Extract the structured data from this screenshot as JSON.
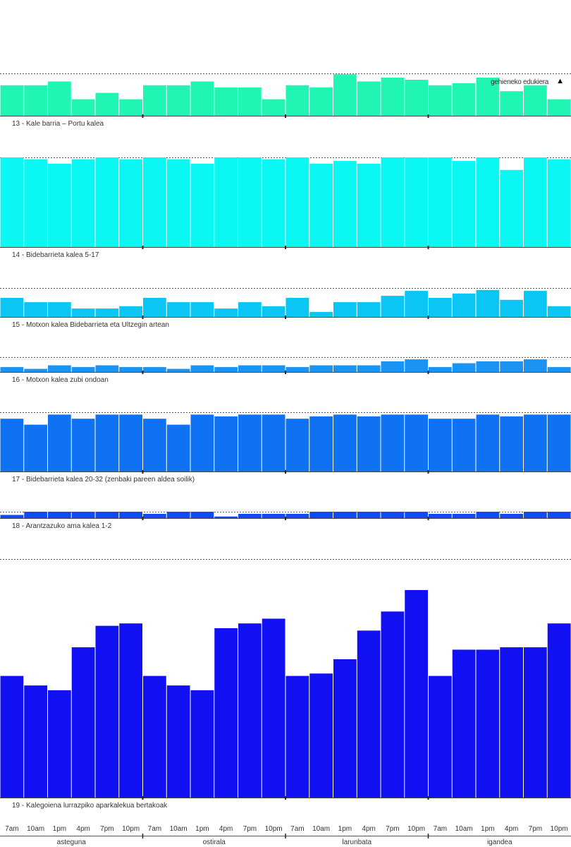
{
  "legend": {
    "label": "gehieneko edukiera",
    "marker": "▲"
  },
  "chart_data": {
    "type": "bar",
    "x_ticks": [
      "7am",
      "10am",
      "1pm",
      "4pm",
      "7pm",
      "10pm"
    ],
    "days": [
      "asteguna",
      "ostirala",
      "larunbata",
      "igandea"
    ],
    "series": [
      {
        "name": "13 - Kale barria – Portu kalea",
        "color": "#21F5B4",
        "capacity": 1.0,
        "values": [
          0.72,
          0.72,
          0.81,
          0.39,
          0.54,
          0.39,
          0.72,
          0.72,
          0.81,
          0.67,
          0.67,
          0.39,
          0.72,
          0.67,
          0.98,
          0.81,
          0.9,
          0.85,
          0.72,
          0.77,
          0.9,
          0.58,
          0.72,
          0.39
        ]
      },
      {
        "name": "14 - Bidebarrieta kalea 5-17",
        "color": "#0AF7F4",
        "capacity": 1.0,
        "values": [
          1.0,
          0.98,
          0.93,
          0.98,
          1.0,
          0.98,
          1.0,
          0.98,
          0.93,
          1.0,
          1.0,
          0.98,
          1.0,
          0.93,
          0.96,
          0.93,
          1.0,
          1.0,
          1.0,
          0.96,
          1.0,
          0.86,
          1.0,
          0.98
        ]
      },
      {
        "name": "15 - Motxon kalea Bidebarrieta eta Ultzegin artean",
        "color": "#0BC6F5",
        "capacity": 1.0,
        "values": [
          0.66,
          0.51,
          0.51,
          0.29,
          0.29,
          0.37,
          0.66,
          0.51,
          0.51,
          0.29,
          0.51,
          0.37,
          0.66,
          0.17,
          0.51,
          0.51,
          0.73,
          0.9,
          0.66,
          0.81,
          0.93,
          0.59,
          0.9,
          0.37
        ]
      },
      {
        "name": "16 - Motxon kalea zubi ondoan",
        "color": "#1A93F2",
        "capacity": 1.0,
        "values": [
          0.33,
          0.21,
          0.45,
          0.33,
          0.45,
          0.33,
          0.33,
          0.21,
          0.45,
          0.33,
          0.45,
          0.45,
          0.33,
          0.45,
          0.45,
          0.45,
          0.72,
          0.85,
          0.33,
          0.59,
          0.72,
          0.72,
          0.85,
          0.33
        ]
      },
      {
        "name": "17 - Bidebarrieta kalea 20-32 (zenbaki pareen aldea soilik)",
        "color": "#0F72F3",
        "capacity": 1.0,
        "values": [
          0.89,
          0.79,
          0.96,
          0.89,
          0.96,
          0.96,
          0.89,
          0.79,
          0.96,
          0.93,
          0.96,
          0.96,
          0.89,
          0.93,
          0.96,
          0.93,
          0.96,
          0.96,
          0.89,
          0.89,
          0.96,
          0.93,
          0.96,
          0.96
        ]
      },
      {
        "name": "18 - Arantzazuko ama kalea 1-2",
        "color": "#0E4BF0",
        "capacity": 1.0,
        "values": [
          0.5,
          1.0,
          1.0,
          1.0,
          1.0,
          1.0,
          0.67,
          1.0,
          1.0,
          0.25,
          0.67,
          0.67,
          0.67,
          1.0,
          1.0,
          1.0,
          1.0,
          1.0,
          0.67,
          0.67,
          1.0,
          0.67,
          1.0,
          1.0
        ]
      },
      {
        "name": "19 - Kalegoiena lurrazpiko aparkalekua bertakoak",
        "color": "#1010F2",
        "capacity": 1.0,
        "values": [
          0.51,
          0.47,
          0.45,
          0.63,
          0.72,
          0.73,
          0.51,
          0.47,
          0.45,
          0.71,
          0.73,
          0.75,
          0.51,
          0.52,
          0.58,
          0.7,
          0.78,
          0.87,
          0.51,
          0.62,
          0.62,
          0.63,
          0.63,
          0.73
        ]
      }
    ]
  }
}
